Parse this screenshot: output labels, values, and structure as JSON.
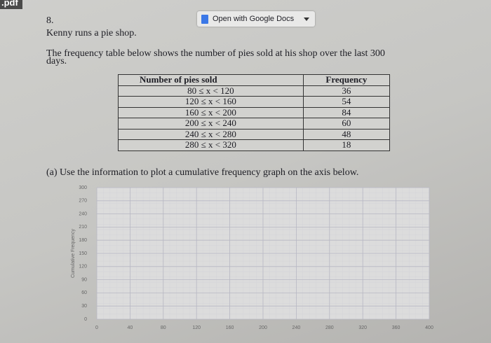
{
  "header": {
    "file_label": ".pdf",
    "button": "Open with Google Docs"
  },
  "question": {
    "number": "8.",
    "lines": [
      "Kenny runs a pie shop.",
      "The frequency table below shows the number of pies sold at his shop over the last 300",
      "days."
    ]
  },
  "table": {
    "headers": [
      "Number of pies sold",
      "Frequency"
    ],
    "rows": [
      [
        "80 ≤ x < 120",
        36
      ],
      [
        "120 ≤ x < 160",
        54
      ],
      [
        "160 ≤ x < 200",
        84
      ],
      [
        "200 ≤ x < 240",
        60
      ],
      [
        "240 ≤ x < 280",
        48
      ],
      [
        "280 ≤ x < 320",
        18
      ]
    ]
  },
  "part_a": "(a) Use the information to plot a cumulative frequency graph on the axis below.",
  "graph": {
    "y_label": "Cumulative Frequency",
    "xlim": [
      0,
      400
    ],
    "ylim": [
      0,
      300
    ],
    "xticks": [
      0,
      40,
      80,
      120,
      160,
      200,
      240,
      280,
      320,
      360,
      400
    ],
    "yticks": [
      0,
      30,
      60,
      90,
      120,
      150,
      180,
      210,
      240,
      270,
      300
    ]
  }
}
